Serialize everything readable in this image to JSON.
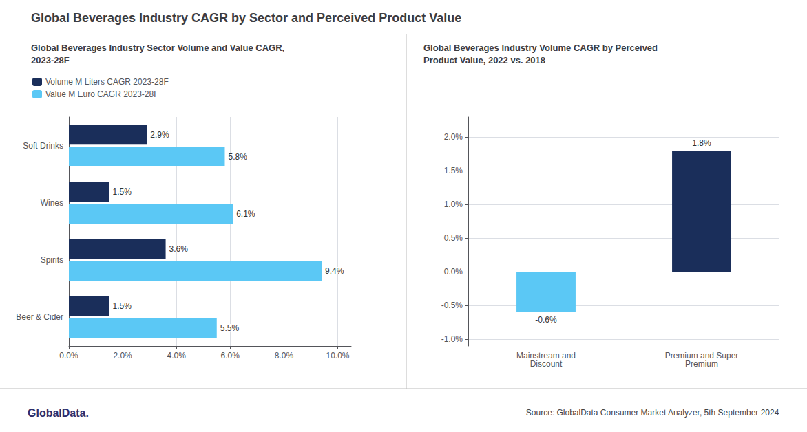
{
  "title": "Global Beverages Industry CAGR by Sector and Perceived Product Value",
  "annotations": [
    "Source: GlobalData Consumer Market Analyzer, 5th September 2024",
    "GlobalData."
  ],
  "chart_data": [
    {
      "type": "bar",
      "orientation": "horizontal",
      "title": "Global Beverages Industry Sector Volume and Value CAGR,\n2023-28F",
      "categories": [
        "Beer & Cider",
        "Spirits",
        "Wines",
        "Soft Drinks"
      ],
      "series": [
        {
          "name": "Volume M Liters CAGR 2023-28F",
          "color": "#1a2e5a",
          "values": [
            1.5,
            3.6,
            1.5,
            2.9
          ],
          "value_labels": [
            "1.5%",
            "3.6%",
            "1.5%",
            "2.9%"
          ]
        },
        {
          "name": "Value M Euro CAGR 2023-28F",
          "color": "#5bc8f5",
          "values": [
            5.5,
            9.4,
            6.1,
            5.8
          ],
          "value_labels": [
            "5.5%",
            "9.4%",
            "6.1%",
            "5.8%"
          ]
        }
      ],
      "xlim": [
        0,
        10.5
      ],
      "xticks": [
        {
          "value": 0,
          "label": "0.0%"
        },
        {
          "value": 2,
          "label": "2.0%"
        },
        {
          "value": 4,
          "label": "4.0%"
        },
        {
          "value": 6,
          "label": "6.0%"
        },
        {
          "value": 8,
          "label": "8.0%"
        },
        {
          "value": 10,
          "label": "10.0%"
        }
      ],
      "grid": true,
      "legend": "top-left",
      "data_labels": true
    },
    {
      "type": "bar",
      "title": "Global Beverages Industry Volume CAGR by Perceived\nProduct Value, 2022 vs. 2018",
      "categories": [
        "Mainstream and\nDiscount",
        "Premium and Super\nPremium"
      ],
      "values": [
        -0.6,
        1.8
      ],
      "value_labels": [
        "-0.6%",
        "1.8%"
      ],
      "colors": [
        "#5bc8f5",
        "#1a2e5a"
      ],
      "ylim": [
        -1.1,
        2.3
      ],
      "yticks": [
        {
          "value": -1.0,
          "label": "-1.0%"
        },
        {
          "value": -0.5,
          "label": "-0.5%"
        },
        {
          "value": 0.0,
          "label": "0.0%"
        },
        {
          "value": 0.5,
          "label": "0.5%"
        },
        {
          "value": 1.0,
          "label": "1.0%"
        },
        {
          "value": 1.5,
          "label": "1.5%"
        },
        {
          "value": 2.0,
          "label": "2.0%"
        }
      ],
      "grid": true,
      "data_labels": true
    }
  ]
}
